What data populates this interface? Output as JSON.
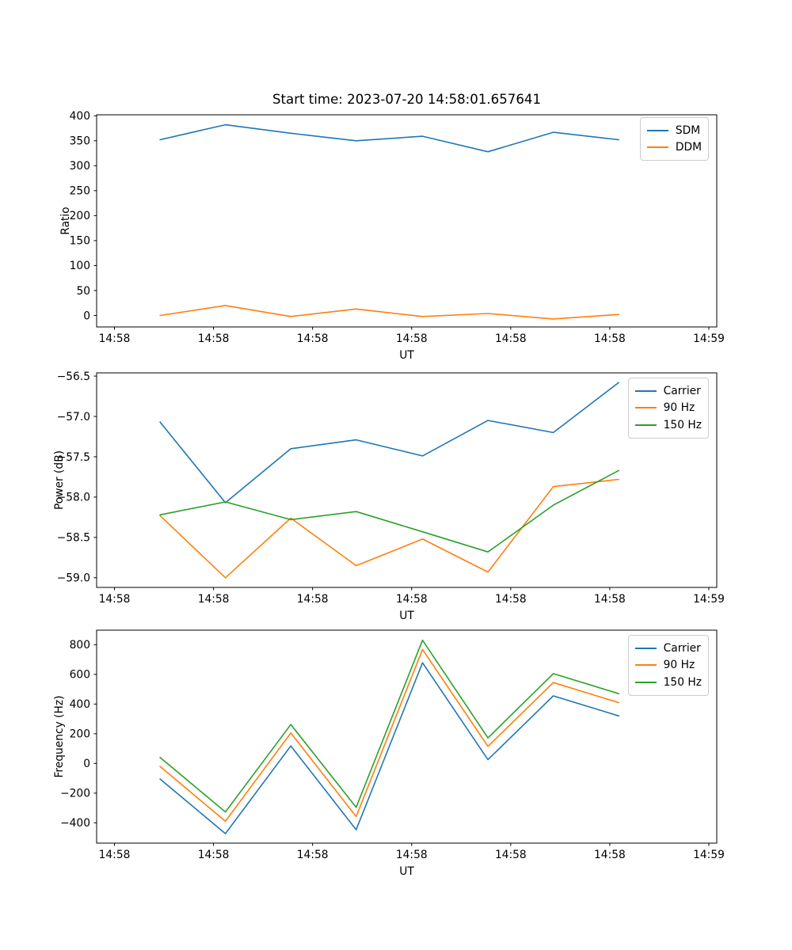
{
  "title": "Start time: 2023-07-20 14:58:01.657641",
  "x_axis": {
    "label": "UT",
    "xlim_seconds": [
      -1.8,
      60.8
    ],
    "ticks_seconds": [
      0,
      10,
      20,
      30,
      40,
      50,
      60
    ],
    "tick_labels": [
      "14:58",
      "14:58",
      "14:58",
      "14:58",
      "14:58",
      "14:58",
      "14:59"
    ]
  },
  "x_seconds": [
    4.6,
    11.2,
    17.8,
    24.4,
    31.1,
    37.7,
    44.3,
    50.9
  ],
  "colors": {
    "blue": "#1f77b4",
    "orange": "#ff7f0e",
    "green": "#2ca02c"
  },
  "chart_data": [
    {
      "type": "line",
      "title": "Start time: 2023-07-20 14:58:01.657641",
      "xlabel": "UT",
      "ylabel": "Ratio",
      "ylim": [
        -23,
        402
      ],
      "grid": false,
      "legend_position": "upper right",
      "yticks": [
        0,
        50,
        100,
        150,
        200,
        250,
        300,
        350,
        400
      ],
      "ytick_labels": [
        "0",
        "50",
        "100",
        "150",
        "200",
        "250",
        "300",
        "350",
        "400"
      ],
      "series": [
        {
          "name": "SDM",
          "color": "#1f77b4",
          "values": [
            352,
            382,
            365,
            350,
            359,
            328,
            367,
            352
          ]
        },
        {
          "name": "DDM",
          "color": "#ff7f0e",
          "values": [
            0,
            20,
            -2,
            13,
            -2,
            4,
            -7,
            2
          ]
        }
      ]
    },
    {
      "type": "line",
      "xlabel": "UT",
      "ylabel": "Power (dB)",
      "ylim": [
        -59.12,
        -56.46
      ],
      "grid": false,
      "legend_position": "upper right",
      "yticks": [
        -59.0,
        -58.5,
        -58.0,
        -57.5,
        -57.0,
        -56.5
      ],
      "ytick_labels": [
        "−59.0",
        "−58.5",
        "−58.0",
        "−57.5",
        "−57.0",
        "−56.5"
      ],
      "series": [
        {
          "name": "Carrier",
          "color": "#1f77b4",
          "values": [
            -57.07,
            -58.07,
            -57.4,
            -57.29,
            -57.49,
            -57.05,
            -57.2,
            -56.58
          ]
        },
        {
          "name": "90 Hz",
          "color": "#ff7f0e",
          "values": [
            -58.23,
            -59.0,
            -58.26,
            -58.85,
            -58.52,
            -58.93,
            -57.87,
            -57.78
          ]
        },
        {
          "name": "150 Hz",
          "color": "#2ca02c",
          "values": [
            -58.22,
            -58.06,
            -58.28,
            -58.18,
            -58.43,
            -58.68,
            -58.1,
            -57.67
          ]
        }
      ]
    },
    {
      "type": "line",
      "xlabel": "UT",
      "ylabel": "Frequency (Hz)",
      "ylim": [
        -537,
        898
      ],
      "grid": false,
      "legend_position": "upper right",
      "yticks": [
        -400,
        -200,
        0,
        200,
        400,
        600,
        800
      ],
      "ytick_labels": [
        "−400",
        "−200",
        "0",
        "200",
        "400",
        "600",
        "800"
      ],
      "series": [
        {
          "name": "Carrier",
          "color": "#1f77b4",
          "values": [
            -105,
            -473,
            118,
            -447,
            678,
            25,
            455,
            320
          ]
        },
        {
          "name": "90 Hz",
          "color": "#ff7f0e",
          "values": [
            -20,
            -390,
            205,
            -358,
            768,
            115,
            545,
            410
          ]
        },
        {
          "name": "150 Hz",
          "color": "#2ca02c",
          "values": [
            40,
            -327,
            262,
            -296,
            830,
            172,
            605,
            470
          ]
        }
      ]
    }
  ]
}
